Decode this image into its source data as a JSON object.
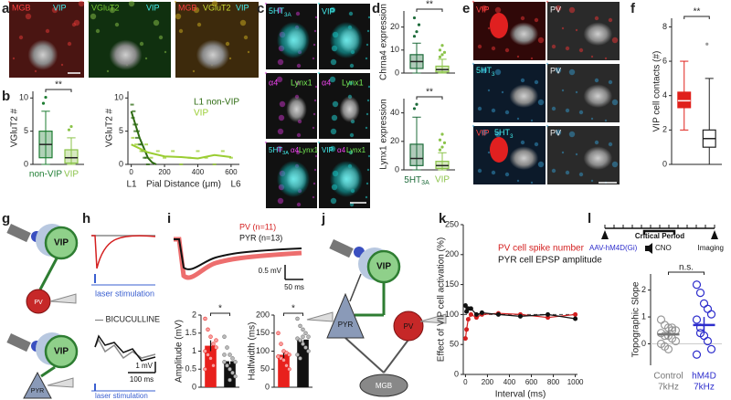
{
  "panel_letters": [
    "a",
    "b",
    "c",
    "d",
    "e",
    "f",
    "g",
    "h",
    "i",
    "j",
    "k",
    "l"
  ],
  "a": {
    "labels": [
      "MGB",
      "VIP",
      "VGluT2",
      "VIP",
      "MGB",
      "VGluT2",
      "VIP"
    ]
  },
  "c": {
    "labels": [
      {
        "text": "5HT",
        "sub": "3A"
      },
      "VIP",
      "α4",
      "Lynx1",
      "α4",
      "Lynx1",
      {
        "text": "5HT",
        "sub": "3A"
      },
      "α4",
      "Lynx1",
      "VIP",
      "α4",
      "Lynx1"
    ]
  },
  "e": {
    "labels": [
      "VIP",
      "PV",
      {
        "text": "5HT",
        "sub": "3"
      },
      "PV",
      "VIP",
      {
        "text": "5HT",
        "sub": "3"
      },
      "PV"
    ]
  },
  "g": {
    "labels": [
      "VIP",
      "PV",
      "VIP",
      "PYR"
    ]
  },
  "h": {
    "labels": [
      "laser stimulation",
      "— BICUCULLINE",
      "1 mV",
      "100 ms",
      "laser stimulation"
    ]
  },
  "i": {
    "labels": [
      "PV (n=11)",
      "PYR (n=13)",
      "0.5 mV",
      "50 ms"
    ]
  },
  "j": {
    "labels": [
      "VIP",
      "PYR",
      "PV",
      "MGB"
    ]
  },
  "l": {
    "labels": [
      "Critical Period",
      "AAV-hM4D(Gi)",
      "CNO",
      "Imaging"
    ]
  },
  "chart_data": [
    {
      "type": "box",
      "ylabel": "VGluT2 #",
      "ylim": [
        0,
        11
      ],
      "yticks": [
        0,
        5,
        10
      ],
      "categories": [
        "non-VIP",
        "VIP"
      ],
      "colors": [
        "#1e7d32",
        "#8bc34a"
      ],
      "boxes": [
        {
          "whisker_low": 0,
          "q1": 1,
          "median": 3,
          "q3": 5,
          "whisker_high": 8,
          "outliers": [
            9.2,
            10.1
          ]
        },
        {
          "whisker_low": 0,
          "q1": 0.2,
          "median": 1,
          "q3": 2.2,
          "whisker_high": 4,
          "outliers": [
            5.2,
            5.7
          ]
        }
      ],
      "significance": "**"
    },
    {
      "type": "scatter",
      "ylabel": "VGluT2 #",
      "xlabel": "Pial Distance (μm)",
      "xlim": [
        -20,
        650
      ],
      "ylim": [
        0,
        11
      ],
      "xticks": [
        0,
        200,
        400,
        600
      ],
      "yticks": [
        0,
        5,
        10
      ],
      "region_labels": [
        "L1",
        "L6"
      ],
      "series": [
        {
          "name": "L1 non-VIP",
          "color": "#2e6b12",
          "x": [
            5,
            10,
            15,
            20,
            25,
            30,
            35,
            40,
            50,
            60,
            70,
            80,
            90,
            100
          ],
          "values": [
            9,
            7,
            8,
            6,
            5,
            6,
            4,
            5,
            3,
            3,
            2,
            1,
            1,
            0
          ],
          "fit": {
            "x": [
              0,
              25,
              50,
              75,
              100,
              125,
              150
            ],
            "values": [
              8,
              6,
              4,
              2.5,
              1,
              0.3,
              0
            ]
          }
        },
        {
          "name": "VIP",
          "color": "#9acd32",
          "x": [
            10,
            30,
            60,
            90,
            120,
            160,
            200,
            250,
            300,
            350,
            400,
            450,
            500,
            550,
            600
          ],
          "values": [
            4,
            3,
            2,
            3,
            1,
            2,
            1,
            2,
            0,
            1,
            2,
            1,
            0,
            2,
            1
          ],
          "fit": {
            "x": [
              0,
              100,
              200,
              300,
              400,
              500,
              600
            ],
            "values": [
              3,
              1.8,
              1.2,
              1.1,
              0.9,
              1.4,
              1.1
            ]
          }
        }
      ]
    },
    {
      "type": "box",
      "ylabel": "Chrna4 expression",
      "ylim": [
        0,
        27
      ],
      "yticks": [
        0,
        10,
        20
      ],
      "colors": [
        "#1d6b3a",
        "#8bc34a"
      ],
      "boxes": [
        {
          "whisker_low": 0,
          "q1": 2,
          "median": 5,
          "q3": 8,
          "whisker_high": 13,
          "outliers": [
            16,
            18,
            21,
            24
          ]
        },
        {
          "whisker_low": 0,
          "q1": 0.5,
          "median": 1.5,
          "q3": 3,
          "whisker_high": 6,
          "outliers": [
            7,
            8,
            9,
            10,
            12
          ]
        }
      ],
      "significance": "**"
    },
    {
      "type": "box",
      "ylabel": "Lynx1 expression",
      "ylim": [
        0,
        50
      ],
      "yticks": [
        0,
        20,
        40
      ],
      "categories": [
        {
          "text": "5HT",
          "sub": "3A"
        },
        "VIP"
      ],
      "colors": [
        "#1d6b3a",
        "#8bc34a"
      ],
      "boxes": [
        {
          "whisker_low": 0,
          "q1": 3,
          "median": 8,
          "q3": 18,
          "whisker_high": 37,
          "outliers": [
            43,
            46
          ]
        },
        {
          "whisker_low": 0,
          "q1": 1,
          "median": 3,
          "q3": 6,
          "whisker_high": 12,
          "outliers": [
            14,
            16,
            19,
            21,
            25
          ]
        }
      ],
      "significance": "**"
    },
    {
      "type": "box",
      "ylabel": "VIP cell contacts (#)",
      "ylim": [
        0,
        8.5
      ],
      "yticks": [
        0,
        2,
        4,
        6,
        8
      ],
      "colors": [
        "#e0201b",
        "#ffffff"
      ],
      "boxes": [
        {
          "whisker_low": 2,
          "q1": 3.3,
          "median": 3.7,
          "q3": 4.2,
          "whisker_high": 6,
          "outliers": []
        },
        {
          "whisker_low": 0,
          "q1": 1,
          "median": 1.5,
          "q3": 2,
          "whisker_high": 5,
          "outliers": [
            7
          ]
        }
      ],
      "significance": "**"
    },
    {
      "type": "bar",
      "ylabel": "Amplitude (mV)",
      "ylim": [
        0,
        2
      ],
      "yticks": [
        0,
        0.5,
        1,
        1.5,
        2
      ],
      "colors": [
        "#e8201c",
        "#111111"
      ],
      "values": [
        1.15,
        0.72
      ],
      "errors": [
        0.15,
        0.08
      ],
      "points": [
        [
          1.9,
          1.6,
          1.4,
          1.2,
          1.1,
          1.0,
          0.9,
          0.8,
          0.6,
          1.3,
          0.5
        ],
        [
          1.4,
          1.1,
          0.9,
          0.8,
          0.7,
          0.7,
          0.6,
          0.5,
          0.4,
          0.3,
          0.9,
          0.6,
          0.2
        ]
      ],
      "significance": "*"
    },
    {
      "type": "bar",
      "ylabel": "Halfwidth (ms)",
      "ylim": [
        0,
        200
      ],
      "yticks": [
        0,
        50,
        100,
        150,
        200
      ],
      "colors": [
        "#e8201c",
        "#111111"
      ],
      "values": [
        90,
        132
      ],
      "errors": [
        10,
        12
      ],
      "points": [
        [
          150,
          120,
          100,
          95,
          90,
          85,
          80,
          75,
          60,
          50,
          85
        ],
        [
          190,
          170,
          160,
          150,
          140,
          135,
          130,
          120,
          110,
          100,
          90,
          80,
          140
        ]
      ],
      "significance": "*"
    },
    {
      "type": "line",
      "ylabel": "Effect of VIP cell  activation (%)",
      "xlabel": "Interval (ms)",
      "xlim": [
        -20,
        1020
      ],
      "ylim": [
        0,
        250
      ],
      "xticks": [
        0,
        200,
        400,
        600,
        800,
        1000
      ],
      "yticks": [
        0,
        50,
        100,
        150,
        200,
        250
      ],
      "hline": 100,
      "x": [
        0,
        10,
        25,
        50,
        100,
        150,
        300,
        500,
        750,
        1000
      ],
      "series": [
        {
          "name": "PV cell spike number",
          "color": "#d42020",
          "values": [
            60,
            75,
            92,
            100,
            95,
            100,
            102,
            100,
            95,
            100
          ]
        },
        {
          "name": "PYR cell EPSP amplitude",
          "color": "#111111",
          "values": [
            115,
            105,
            110,
            110,
            100,
            103,
            100,
            97,
            100,
            93
          ]
        }
      ]
    },
    {
      "type": "strip",
      "ylabel": "Topographic Slope",
      "ylim": [
        -0.8,
        2.6
      ],
      "yticks": [
        0,
        1,
        2
      ],
      "categories": [
        "Control",
        "hM4D"
      ],
      "sublabels": [
        "7kHz",
        "7kHz"
      ],
      "colors": [
        "#999999",
        "#2d2dcc"
      ],
      "points": [
        [
          0.9,
          0.7,
          0.6,
          0.5,
          0.5,
          0.4,
          0.3,
          0.3,
          0.2,
          0.1,
          0,
          -0.1,
          -0.2,
          0.6
        ],
        [
          2.2,
          1.9,
          1.5,
          1.3,
          1.1,
          0.9,
          0.6,
          0.3,
          0.1,
          -0.2,
          -0.4,
          0.4
        ]
      ],
      "means": [
        0.35,
        0.7
      ],
      "sems": [
        0.12,
        0.3
      ],
      "significance": "n.s."
    }
  ]
}
